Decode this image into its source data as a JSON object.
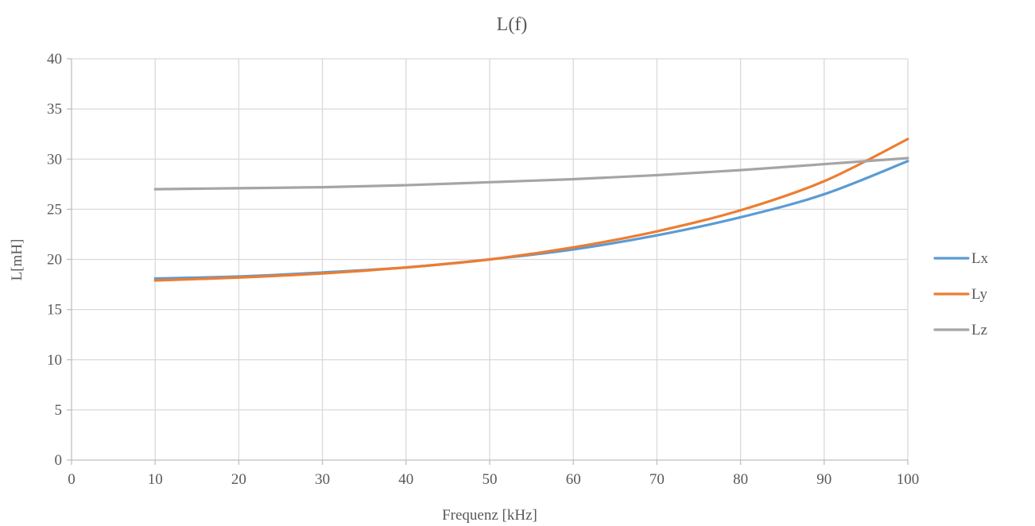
{
  "chart_data": {
    "type": "line",
    "title": "L(f)",
    "xlabel": "Frequenz [kHz]",
    "ylabel": "L[mH]",
    "xlim": [
      0,
      100
    ],
    "ylim": [
      0,
      40
    ],
    "x_ticks": [
      0,
      10,
      20,
      30,
      40,
      50,
      60,
      70,
      80,
      90,
      100
    ],
    "y_ticks": [
      0,
      5,
      10,
      15,
      20,
      25,
      30,
      35,
      40
    ],
    "grid": true,
    "legend_position": "right",
    "x": [
      10,
      20,
      30,
      40,
      50,
      60,
      70,
      80,
      90,
      100
    ],
    "series": [
      {
        "name": "Lx",
        "color": "#5b9bd5",
        "values": [
          18.1,
          18.3,
          18.7,
          19.2,
          20.0,
          21.0,
          22.4,
          24.2,
          26.5,
          29.8
        ]
      },
      {
        "name": "Ly",
        "color": "#ed7d31",
        "values": [
          17.9,
          18.2,
          18.6,
          19.2,
          20.0,
          21.2,
          22.8,
          24.9,
          27.8,
          32.0
        ]
      },
      {
        "name": "Lz",
        "color": "#a5a5a5",
        "values": [
          27.0,
          27.1,
          27.2,
          27.4,
          27.7,
          28.0,
          28.4,
          28.9,
          29.5,
          30.1
        ]
      }
    ]
  }
}
